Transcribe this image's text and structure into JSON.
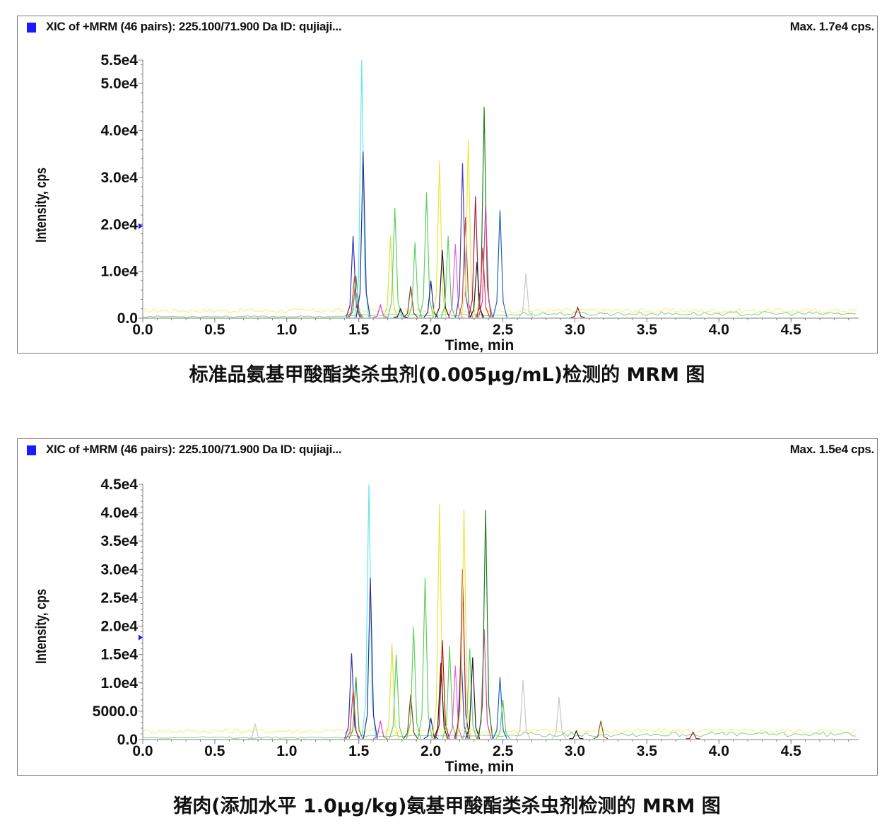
{
  "chart_data": [
    {
      "type": "line",
      "title": "XIC of +MRM (46 pairs): 225.100/71.900 Da ID: qujiaji...",
      "max_label": "Max. 1.7e4 cps.",
      "xlabel": "Time, min",
      "ylabel": "Intensity, cps",
      "xlim": [
        0.0,
        4.97
      ],
      "ylim": [
        0,
        55000
      ],
      "xticks": [
        0.0,
        0.5,
        1.0,
        1.5,
        2.0,
        2.5,
        3.0,
        3.5,
        4.0,
        4.5
      ],
      "xtick_labels": [
        "0.0",
        "0.5",
        "1.0",
        "1.5",
        "2.0",
        "2.5",
        "3.0",
        "3.5",
        "4.0",
        "4.5"
      ],
      "yticks": [
        0,
        10000,
        20000,
        30000,
        40000,
        50000,
        55000
      ],
      "ytick_labels": [
        "0.0",
        "1.0e4",
        "2.0e4",
        "3.0e4",
        "4.0e4",
        "5.0e4",
        "5.5e4"
      ],
      "marker_y": 19600,
      "baseline": 1600,
      "peaks": [
        {
          "t": 1.46,
          "h": 17500,
          "color": "#3030c0"
        },
        {
          "t": 1.47,
          "h": 8800,
          "color": "#e03050"
        },
        {
          "t": 1.48,
          "h": 9000,
          "color": "#3a9a3a"
        },
        {
          "t": 1.52,
          "h": 55000,
          "color": "#60e8e8"
        },
        {
          "t": 1.53,
          "h": 35500,
          "color": "#303090"
        },
        {
          "t": 1.65,
          "h": 2800,
          "color": "#d040d0"
        },
        {
          "t": 1.72,
          "h": 17500,
          "color": "#d8e040"
        },
        {
          "t": 1.75,
          "h": 23500,
          "color": "#60d060"
        },
        {
          "t": 1.79,
          "h": 2000,
          "color": "#101060"
        },
        {
          "t": 1.86,
          "h": 6800,
          "color": "#804020"
        },
        {
          "t": 1.89,
          "h": 16200,
          "color": "#60d060"
        },
        {
          "t": 1.97,
          "h": 26800,
          "color": "#60d060"
        },
        {
          "t": 2.0,
          "h": 8000,
          "color": "#2020a0"
        },
        {
          "t": 2.06,
          "h": 33500,
          "color": "#e8e840"
        },
        {
          "t": 2.08,
          "h": 14500,
          "color": "#202020"
        },
        {
          "t": 2.12,
          "h": 17500,
          "color": "#60d060"
        },
        {
          "t": 2.17,
          "h": 15800,
          "color": "#e060e0"
        },
        {
          "t": 2.22,
          "h": 33000,
          "color": "#4040c0"
        },
        {
          "t": 2.24,
          "h": 21500,
          "color": "#c05050"
        },
        {
          "t": 2.26,
          "h": 38000,
          "color": "#e8e840"
        },
        {
          "t": 2.31,
          "h": 26000,
          "color": "#a02040"
        },
        {
          "t": 2.32,
          "h": 12000,
          "color": "#202020"
        },
        {
          "t": 2.37,
          "h": 45000,
          "color": "#208020"
        },
        {
          "t": 2.38,
          "h": 24000,
          "color": "#e040a0"
        },
        {
          "t": 2.36,
          "h": 15000,
          "color": "#e03050"
        },
        {
          "t": 2.48,
          "h": 23000,
          "color": "#2060c0"
        },
        {
          "t": 2.66,
          "h": 9500,
          "color": "#c8c8c8"
        },
        {
          "t": 3.02,
          "h": 2300,
          "color": "#802020"
        }
      ]
    },
    {
      "type": "line",
      "title": "XIC of +MRM (46 pairs): 225.100/71.900 Da ID: qujiaji...",
      "max_label": "Max. 1.5e4 cps.",
      "xlabel": "Time, min",
      "ylabel": "Intensity, cps",
      "xlim": [
        0.0,
        4.97
      ],
      "ylim": [
        0,
        45000
      ],
      "xticks": [
        0.0,
        0.5,
        1.0,
        1.5,
        2.0,
        2.5,
        3.0,
        3.5,
        4.0,
        4.5
      ],
      "xtick_labels": [
        "0.0",
        "0.5",
        "1.0",
        "1.5",
        "2.0",
        "2.5",
        "3.0",
        "3.5",
        "4.0",
        "4.5"
      ],
      "yticks": [
        0,
        5000,
        10000,
        15000,
        20000,
        25000,
        30000,
        35000,
        40000,
        45000
      ],
      "ytick_labels": [
        "0.0",
        "5000.0",
        "1.0e4",
        "1.5e4",
        "2.0e4",
        "2.5e4",
        "3.0e4",
        "3.5e4",
        "4.0e4",
        "4.5e4"
      ],
      "marker_y": 18000,
      "baseline": 1500,
      "peaks": [
        {
          "t": 0.78,
          "h": 2800,
          "color": "#c8c8c8"
        },
        {
          "t": 1.45,
          "h": 15200,
          "color": "#3030c0"
        },
        {
          "t": 1.46,
          "h": 8500,
          "color": "#e03050"
        },
        {
          "t": 1.48,
          "h": 11000,
          "color": "#3a9a3a"
        },
        {
          "t": 1.57,
          "h": 45000,
          "color": "#60e8e8"
        },
        {
          "t": 1.58,
          "h": 28500,
          "color": "#303090"
        },
        {
          "t": 1.65,
          "h": 3300,
          "color": "#d040d0"
        },
        {
          "t": 1.73,
          "h": 16800,
          "color": "#d8e040"
        },
        {
          "t": 1.76,
          "h": 15000,
          "color": "#60d060"
        },
        {
          "t": 1.86,
          "h": 7900,
          "color": "#804020"
        },
        {
          "t": 1.88,
          "h": 19800,
          "color": "#60d060"
        },
        {
          "t": 1.96,
          "h": 28500,
          "color": "#60d060"
        },
        {
          "t": 2.0,
          "h": 3800,
          "color": "#2020a0"
        },
        {
          "t": 2.06,
          "h": 41500,
          "color": "#e8e840"
        },
        {
          "t": 2.07,
          "h": 13500,
          "color": "#202020"
        },
        {
          "t": 2.08,
          "h": 17500,
          "color": "#c01010"
        },
        {
          "t": 2.13,
          "h": 16500,
          "color": "#60d060"
        },
        {
          "t": 2.17,
          "h": 13000,
          "color": "#e060e0"
        },
        {
          "t": 2.21,
          "h": 15500,
          "color": "#4040c0"
        },
        {
          "t": 2.22,
          "h": 30000,
          "color": "#a02040"
        },
        {
          "t": 2.23,
          "h": 40500,
          "color": "#e8e840"
        },
        {
          "t": 2.27,
          "h": 16000,
          "color": "#60d060"
        },
        {
          "t": 2.29,
          "h": 14500,
          "color": "#202020"
        },
        {
          "t": 2.37,
          "h": 19500,
          "color": "#e040a0"
        },
        {
          "t": 2.38,
          "h": 40500,
          "color": "#208020"
        },
        {
          "t": 2.48,
          "h": 11000,
          "color": "#2060c0"
        },
        {
          "t": 2.5,
          "h": 7000,
          "color": "#60d060"
        },
        {
          "t": 2.64,
          "h": 10500,
          "color": "#c8c8c8"
        },
        {
          "t": 2.89,
          "h": 7500,
          "color": "#c8c8c8"
        },
        {
          "t": 3.01,
          "h": 1500,
          "color": "#202020"
        },
        {
          "t": 3.18,
          "h": 3300,
          "color": "#806020"
        },
        {
          "t": 3.82,
          "h": 1300,
          "color": "#a02040"
        }
      ]
    }
  ],
  "captions": [
    "标准品氨基甲酸酯类杀虫剂(0.005μg/mL)检测的 MRM 图",
    "猪肉(添加水平 1.0μg/kg)氨基甲酸酯类杀虫剂检测的 MRM 图"
  ],
  "colors": {
    "marker": "#1a1aff",
    "axis": "#808080",
    "text": "#111111"
  },
  "icons": [
    "series-square-icon",
    "marker-triangle-icon"
  ]
}
